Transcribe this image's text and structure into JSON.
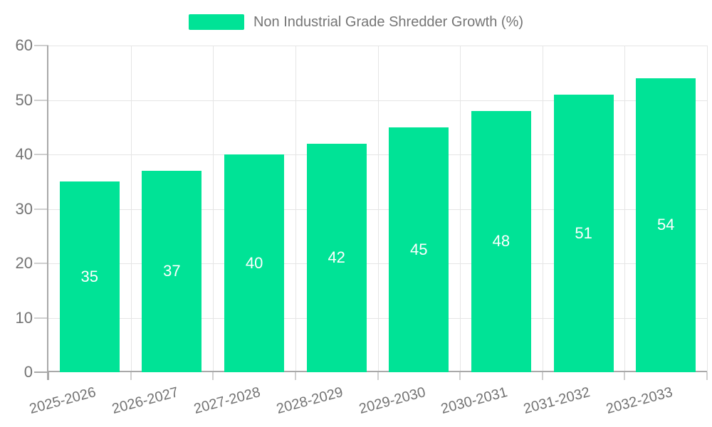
{
  "legend": {
    "label": "Non Industrial Grade Shredder Growth (%)"
  },
  "chart_data": {
    "type": "bar",
    "title": "Non Industrial Grade Shredder Growth (%)",
    "categories": [
      "2025-2026",
      "2026-2027",
      "2027-2028",
      "2028-2029",
      "2029-2030",
      "2030-2031",
      "2031-2032",
      "2032-2033"
    ],
    "values": [
      35,
      37,
      40,
      42,
      45,
      48,
      51,
      54
    ],
    "xlabel": "",
    "ylabel": "",
    "ylim": [
      0,
      60
    ],
    "yticks": [
      0,
      10,
      20,
      30,
      40,
      50,
      60
    ],
    "grid": "both",
    "legend_position": "top",
    "bar_color": "#00E396",
    "bar_label_color": "#FFFFFF",
    "axis_color": "#A9A9A9",
    "gridline_color": "#E5E5E5",
    "tick_color": "#CFCFCF",
    "tick_label_color": "#737373",
    "legend_text_color": "#757575",
    "background_color": "#FFFFFF"
  }
}
